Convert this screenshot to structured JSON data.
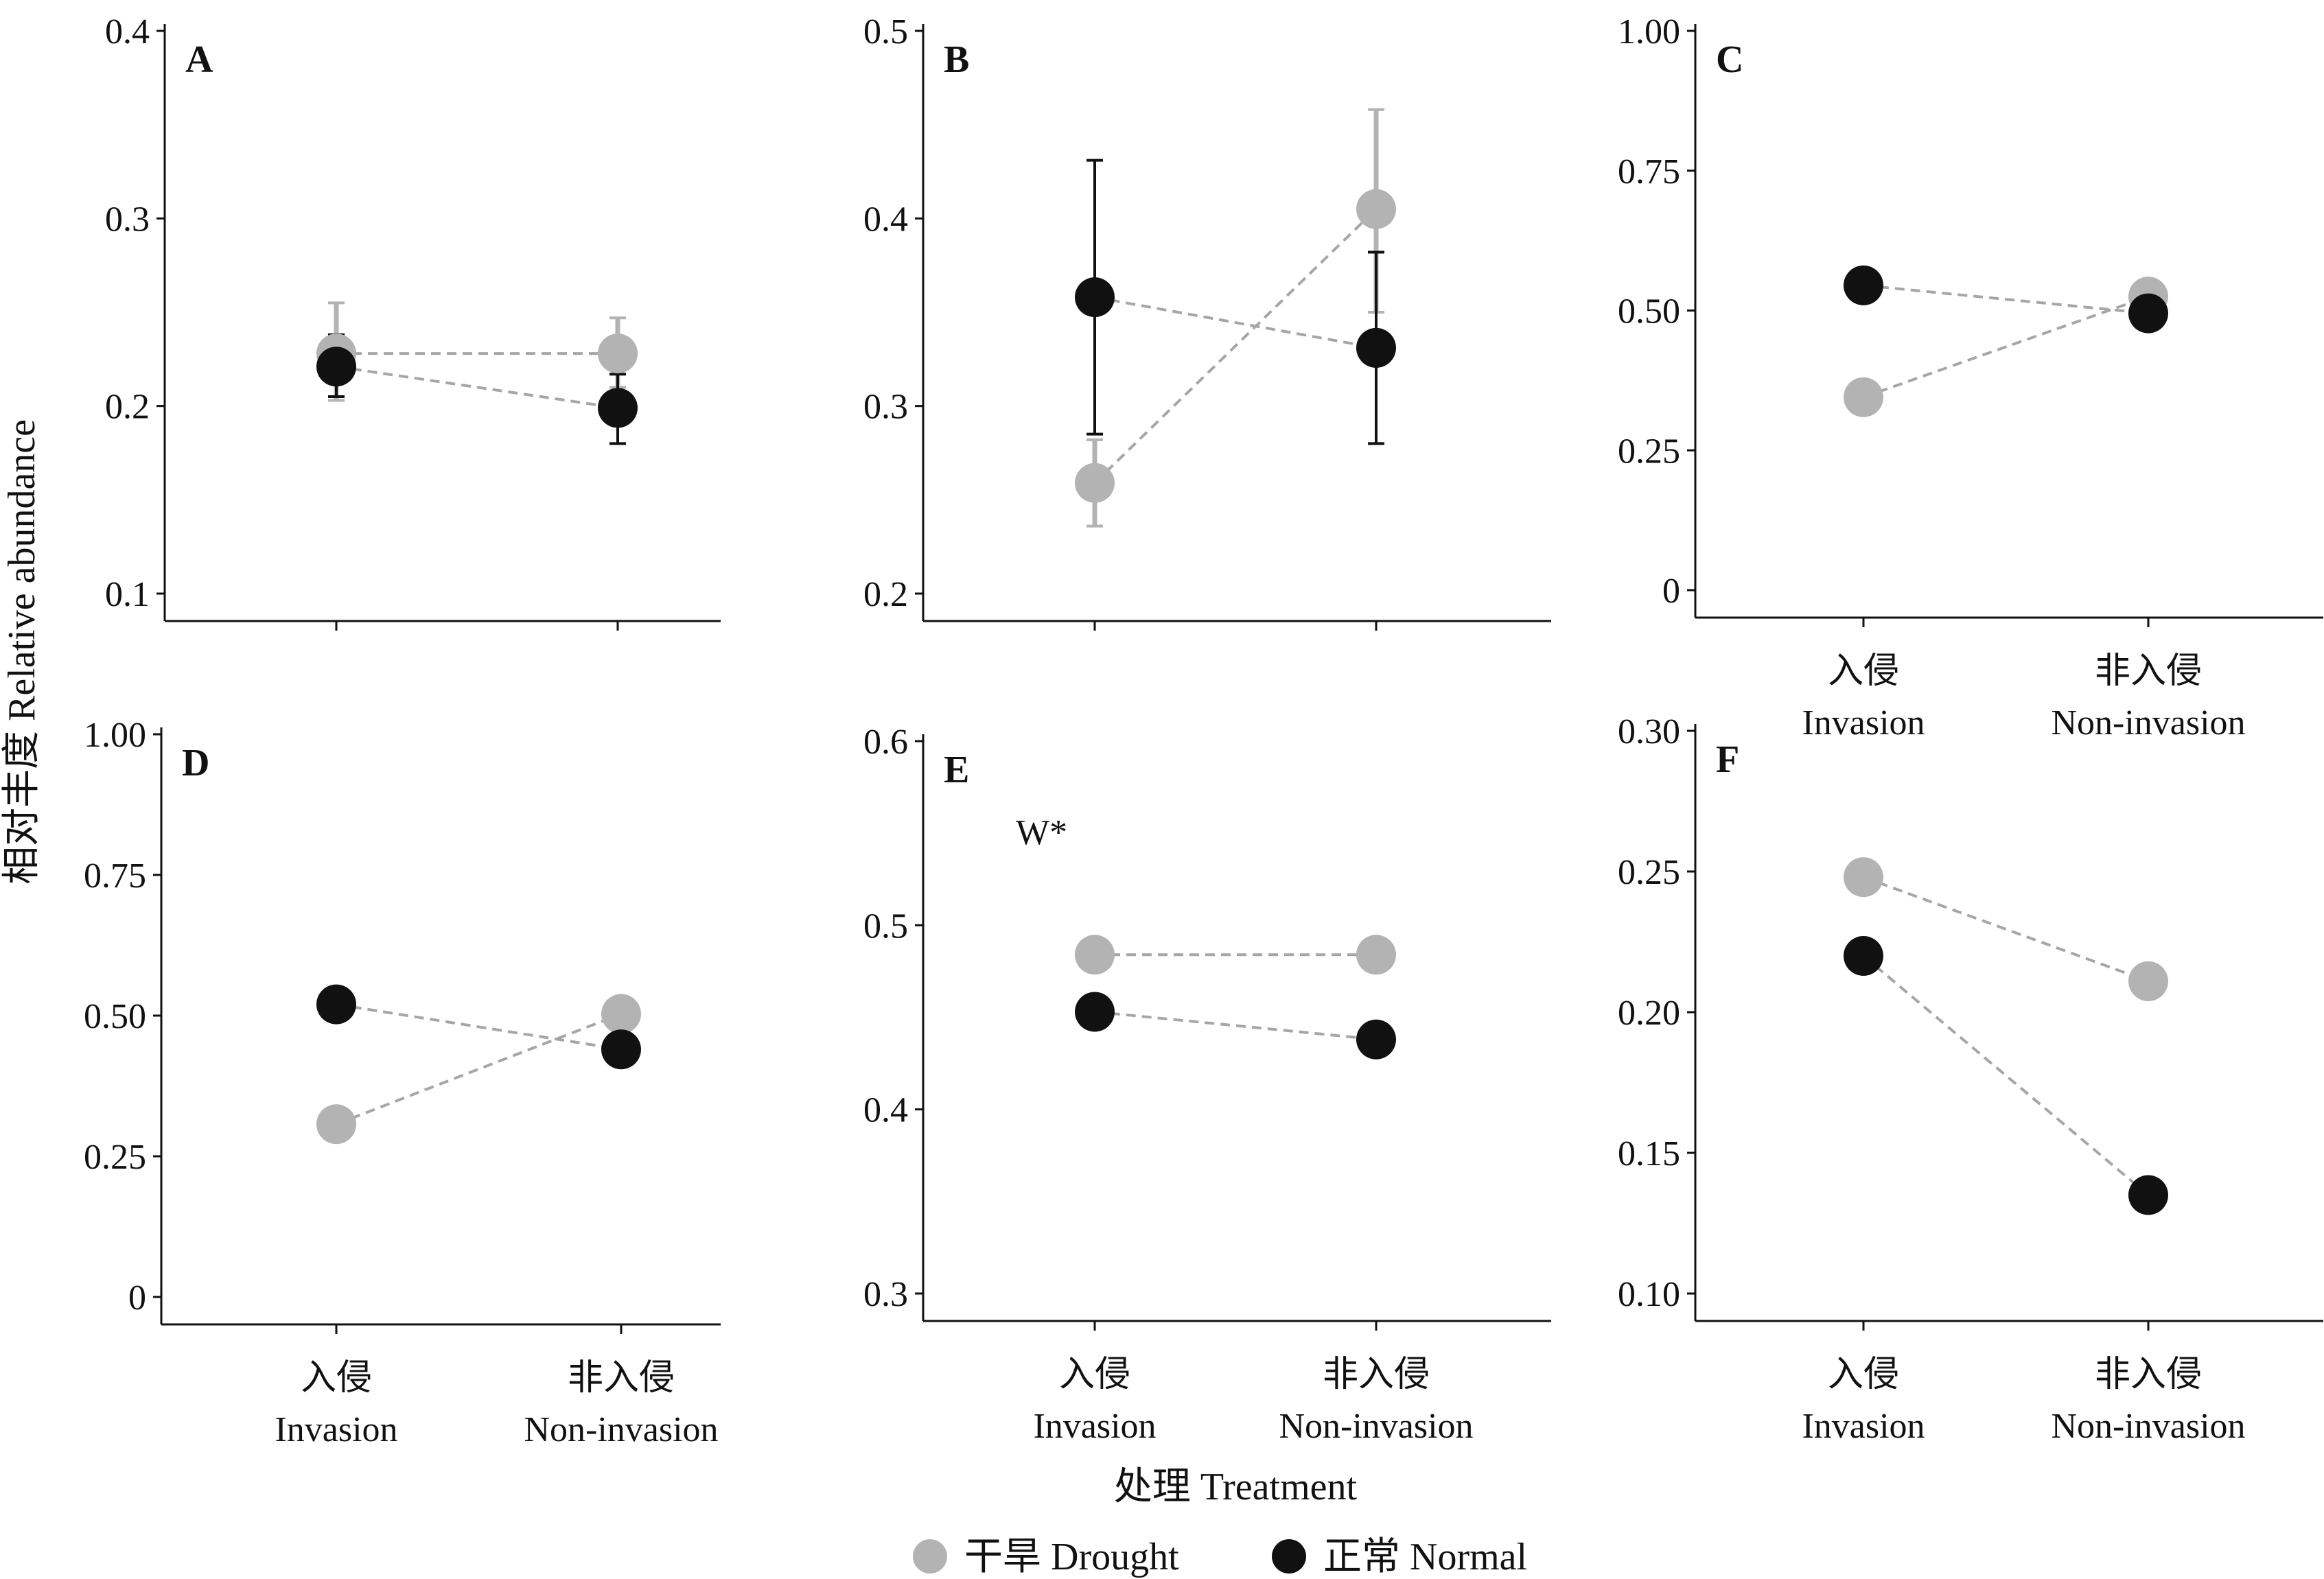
{
  "figure": {
    "ylabel": "相对丰度 Relative abundance",
    "xlabel": "处理 Treatment",
    "legend": [
      {
        "label": "干旱 Drought",
        "color": "#b3b3b3"
      },
      {
        "label": "正常 Normal",
        "color": "#111111"
      }
    ],
    "colors": {
      "drought": "#b3b3b3",
      "normal": "#111111",
      "connector": "#a6a6a6"
    }
  },
  "chart_data": [
    {
      "type": "scatter",
      "panel": "A",
      "categories": [
        {
          "zh": "入侵",
          "en": "Invasion"
        },
        {
          "zh": "非入侵",
          "en": "Non-invasion"
        }
      ],
      "ylim": [
        0.1,
        0.4
      ],
      "yticks": [
        "0.1",
        "0.2",
        "0.3",
        "0.4"
      ],
      "series": [
        {
          "key": "drought",
          "values": [
            0.228,
            0.228
          ],
          "err_low": [
            0.203,
            0.21
          ],
          "err_high": [
            0.255,
            0.247
          ]
        },
        {
          "key": "normal",
          "values": [
            0.221,
            0.199
          ],
          "err_low": [
            0.205,
            0.18
          ],
          "err_high": [
            0.238,
            0.217
          ]
        }
      ],
      "annotation": "",
      "show_xlabels": false
    },
    {
      "type": "scatter",
      "panel": "B",
      "categories": [
        {
          "zh": "入侵",
          "en": "Invasion"
        },
        {
          "zh": "非入侵",
          "en": "Non-invasion"
        }
      ],
      "ylim": [
        0.2,
        0.5
      ],
      "yticks": [
        "0.2",
        "0.3",
        "0.4",
        "0.5"
      ],
      "series": [
        {
          "key": "drought",
          "values": [
            0.259,
            0.405
          ],
          "err_low": [
            0.236,
            0.35
          ],
          "err_high": [
            0.282,
            0.458
          ]
        },
        {
          "key": "normal",
          "values": [
            0.358,
            0.331
          ],
          "err_low": [
            0.285,
            0.28
          ],
          "err_high": [
            0.431,
            0.382
          ]
        }
      ],
      "annotation": "",
      "show_xlabels": false
    },
    {
      "type": "scatter",
      "panel": "C",
      "categories": [
        {
          "zh": "入侵",
          "en": "Invasion"
        },
        {
          "zh": "非入侵",
          "en": "Non-invasion"
        }
      ],
      "ylim": [
        0,
        1.0
      ],
      "yticks": [
        "0",
        "0.25",
        "0.50",
        "0.75",
        "1.00"
      ],
      "series": [
        {
          "key": "drought",
          "values": [
            0.345,
            0.525
          ],
          "err_low": null,
          "err_high": null
        },
        {
          "key": "normal",
          "values": [
            0.545,
            0.495
          ],
          "err_low": null,
          "err_high": null
        }
      ],
      "annotation": "",
      "show_xlabels": true
    },
    {
      "type": "scatter",
      "panel": "D",
      "categories": [
        {
          "zh": "入侵",
          "en": "Invasion"
        },
        {
          "zh": "非入侵",
          "en": "Non-invasion"
        }
      ],
      "ylim": [
        0,
        1.0
      ],
      "yticks": [
        "0",
        "0.25",
        "0.50",
        "0.75",
        "1.00"
      ],
      "series": [
        {
          "key": "drought",
          "values": [
            0.307,
            0.503
          ],
          "err_low": null,
          "err_high": null
        },
        {
          "key": "normal",
          "values": [
            0.52,
            0.44
          ],
          "err_low": null,
          "err_high": null
        }
      ],
      "annotation": "",
      "show_xlabels": true
    },
    {
      "type": "scatter",
      "panel": "E",
      "categories": [
        {
          "zh": "入侵",
          "en": "Invasion"
        },
        {
          "zh": "非入侵",
          "en": "Non-invasion"
        }
      ],
      "ylim": [
        0.3,
        0.6
      ],
      "yticks": [
        "0.3",
        "0.4",
        "0.5",
        "0.6"
      ],
      "series": [
        {
          "key": "drought",
          "values": [
            0.484,
            0.484
          ],
          "err_low": null,
          "err_high": null
        },
        {
          "key": "normal",
          "values": [
            0.453,
            0.438
          ],
          "err_low": null,
          "err_high": null
        }
      ],
      "annotation": "W*",
      "show_xlabels": true
    },
    {
      "type": "scatter",
      "panel": "F",
      "categories": [
        {
          "zh": "入侵",
          "en": "Invasion"
        },
        {
          "zh": "非入侵",
          "en": "Non-invasion"
        }
      ],
      "ylim": [
        0.1,
        0.3
      ],
      "yticks": [
        "0.10",
        "0.15",
        "0.20",
        "0.25",
        "0.30"
      ],
      "series": [
        {
          "key": "drought",
          "values": [
            0.248,
            0.211
          ],
          "err_low": null,
          "err_high": null
        },
        {
          "key": "normal",
          "values": [
            0.22,
            0.135
          ],
          "err_low": null,
          "err_high": null
        }
      ],
      "annotation": "",
      "show_xlabels": true
    }
  ]
}
